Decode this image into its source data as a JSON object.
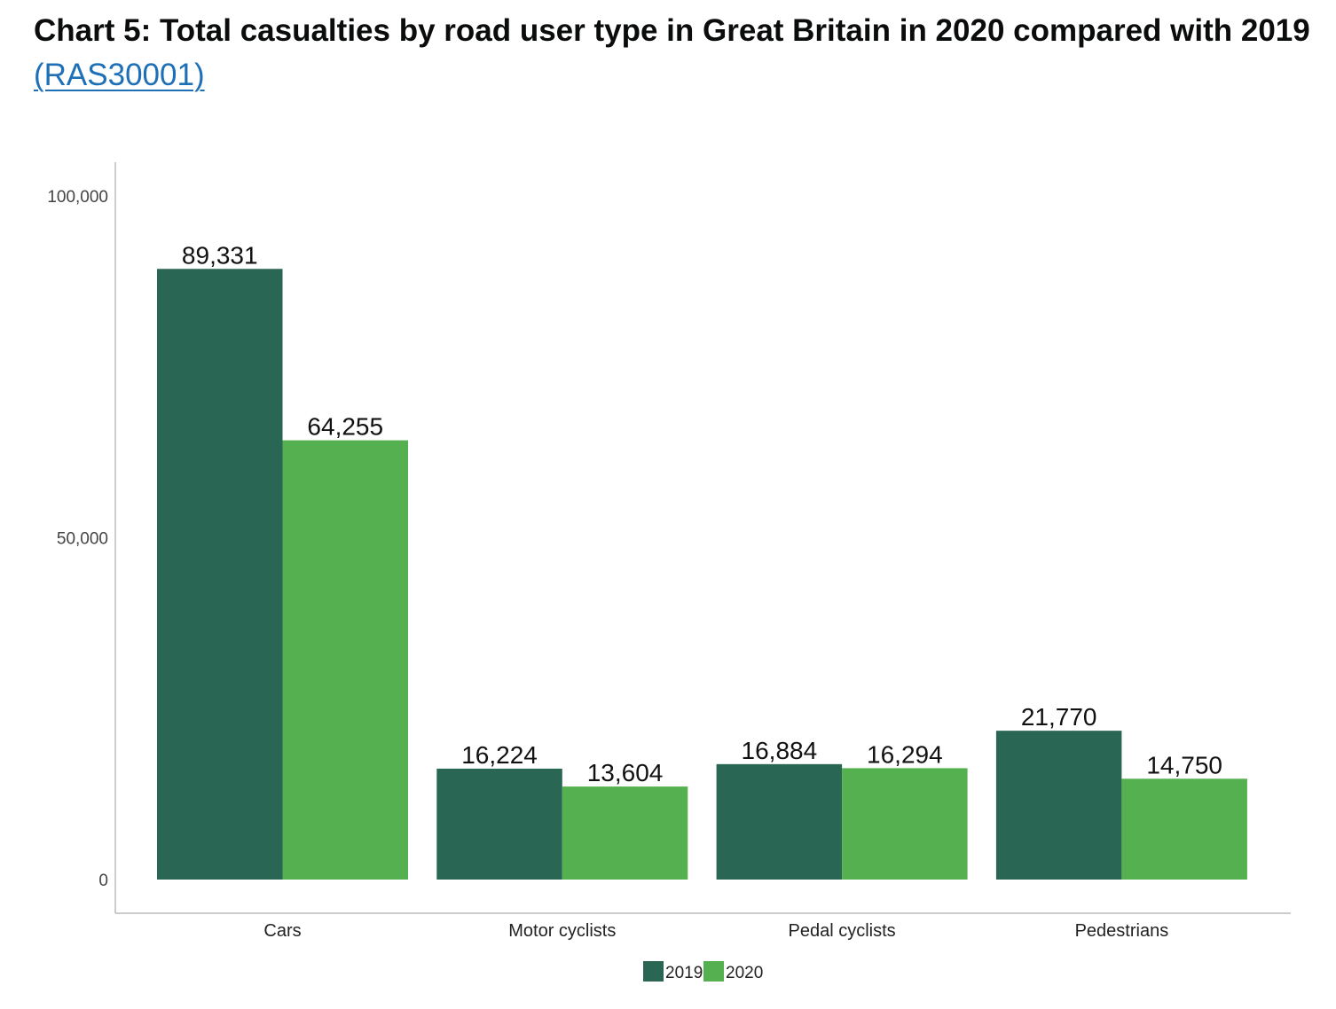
{
  "page": {
    "title_text": "Chart 5: Total casualties by road user type in Great Britain in 2020 compared with 2019",
    "title_link": "(RAS30001)"
  },
  "colors": {
    "series_2019": "#2a6654",
    "series_2020": "#55b04f",
    "axis": "#bbbbbb",
    "link": "#1d70b8"
  },
  "chart_data": {
    "type": "bar",
    "categories": [
      "Cars",
      "Motor cyclists",
      "Pedal cyclists",
      "Pedestrians"
    ],
    "series": [
      {
        "name": "2019",
        "values": [
          89331,
          16224,
          16884,
          21770
        ],
        "labels": [
          "89,331",
          "16,224",
          "16,884",
          "21,770"
        ]
      },
      {
        "name": "2020",
        "values": [
          64255,
          13604,
          16294,
          14750
        ],
        "labels": [
          "64,255",
          "13,604",
          "16,294",
          "14,750"
        ]
      }
    ],
    "yticks": [
      0,
      50000,
      100000
    ],
    "ytick_labels": [
      "0",
      "50,000",
      "100,000"
    ],
    "ylim": [
      0,
      100000
    ],
    "grid": false,
    "legend": "bottom"
  }
}
